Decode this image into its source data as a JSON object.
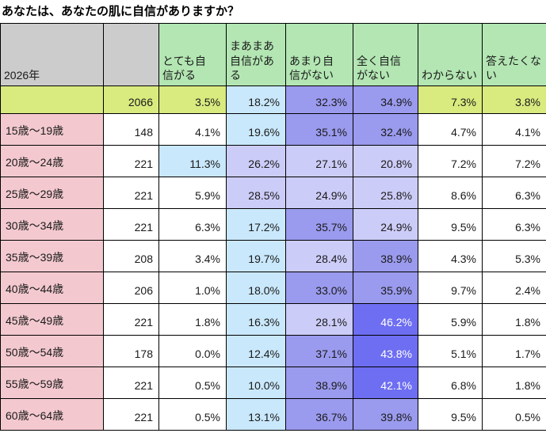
{
  "title": "あなたは、あなたの肌に自信がありますか？",
  "header": {
    "year_label": "2026年",
    "count_header_label": "",
    "columns_display": [
      "とても自\n信がる",
      "まあまあ\n自信があ\nる",
      "あまり自\n信がない",
      "全く自信\nがない",
      "わからない",
      "答えたくな\nい"
    ]
  },
  "chart_data": {
    "type": "heatmap",
    "title": "あなたは、あなたの肌に自信がありますか？",
    "row_header_label": "2026年",
    "columns": [
      "とても自信がる",
      "まあまあ自信がある",
      "あまり自信がない",
      "全く自信がない",
      "わからない",
      "答えたくない"
    ],
    "value_unit": "%",
    "rows": [
      {
        "label": "",
        "n": 2066,
        "values": [
          3.5,
          18.2,
          32.3,
          34.9,
          7.3,
          3.8
        ],
        "total": true
      },
      {
        "label": "15歳〜19歳",
        "n": 148,
        "values": [
          4.1,
          19.6,
          35.1,
          32.4,
          4.7,
          4.1
        ]
      },
      {
        "label": "20歳〜24歳",
        "n": 221,
        "values": [
          11.3,
          26.2,
          27.1,
          20.8,
          7.2,
          7.2
        ]
      },
      {
        "label": "25歳〜29歳",
        "n": 221,
        "values": [
          5.9,
          28.5,
          24.9,
          25.8,
          8.6,
          6.3
        ]
      },
      {
        "label": "30歳〜34歳",
        "n": 221,
        "values": [
          6.3,
          17.2,
          35.7,
          24.9,
          9.5,
          6.3
        ]
      },
      {
        "label": "35歳〜39歳",
        "n": 208,
        "values": [
          3.4,
          19.7,
          28.4,
          38.9,
          4.3,
          5.3
        ]
      },
      {
        "label": "40歳〜44歳",
        "n": 206,
        "values": [
          1.0,
          18.0,
          33.0,
          35.9,
          9.7,
          2.4
        ]
      },
      {
        "label": "45歳〜49歳",
        "n": 221,
        "values": [
          1.8,
          16.3,
          28.1,
          46.2,
          5.9,
          1.8
        ]
      },
      {
        "label": "50歳〜54歳",
        "n": 178,
        "values": [
          0.0,
          12.4,
          37.1,
          43.8,
          5.1,
          1.7
        ]
      },
      {
        "label": "55歳〜59歳",
        "n": 221,
        "values": [
          0.5,
          10.0,
          38.9,
          42.1,
          6.8,
          1.8
        ]
      },
      {
        "label": "60歳〜64歳",
        "n": 221,
        "values": [
          0.5,
          13.1,
          36.7,
          39.8,
          9.5,
          0.5
        ]
      }
    ],
    "heat_scale": [
      {
        "min": 10,
        "color": "#c9e8fb"
      },
      {
        "min": 20,
        "color": "#ccccf8"
      },
      {
        "min": 30,
        "color": "#9a9aee"
      },
      {
        "min": 40,
        "color": "#6e6ef2",
        "text_color": "#ffffff"
      }
    ]
  },
  "colors": {
    "header_gray": "#cccccc",
    "header_green": "#b3e6b3",
    "total_row_green": "#d9ea7f",
    "age_label_pink": "#f3c9cf",
    "cell_white": "#ffffff",
    "heat_10_19": "#c9e8fb",
    "heat_20_29": "#ccccf8",
    "heat_30_39": "#9a9aee",
    "heat_40_plus": "#6e6ef2",
    "border": "#000000",
    "title_text": "#000000"
  }
}
